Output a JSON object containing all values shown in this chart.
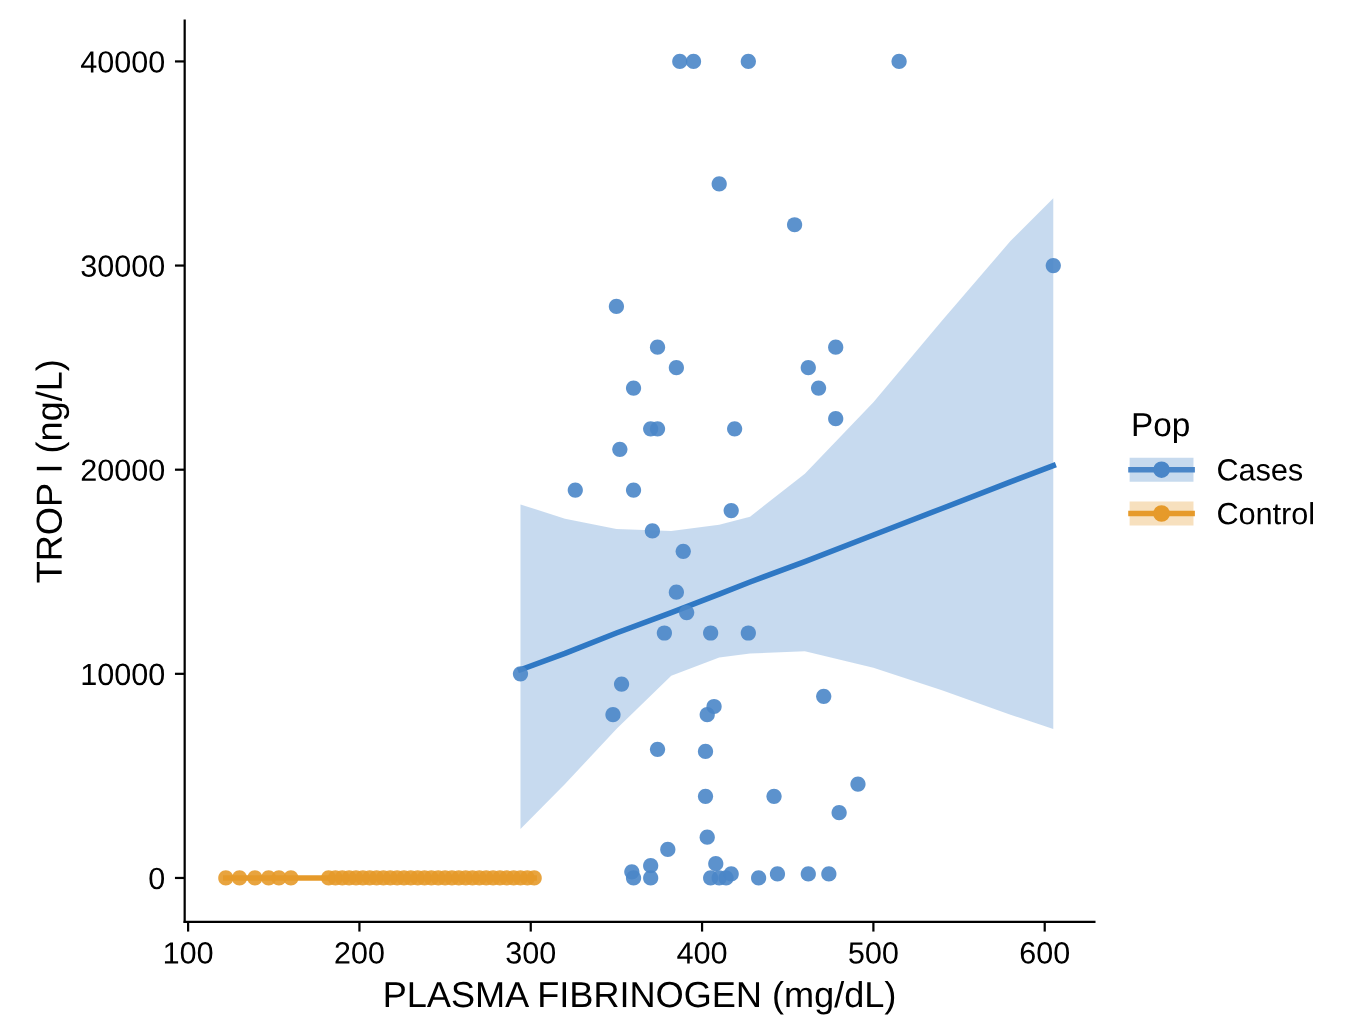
{
  "chart_data": {
    "type": "scatter",
    "xlabel": "PLASMA FIBRINOGEN (mg/dL)",
    "ylabel": "TROP I (ng/L)",
    "legend_title": "Pop",
    "legend": "right",
    "grid": false,
    "xlim": [
      98,
      629
    ],
    "ylim": [
      -2150,
      42000
    ],
    "xticks": [
      100,
      200,
      300,
      400,
      500,
      600
    ],
    "yticks": [
      0,
      10000,
      20000,
      30000,
      40000
    ],
    "series": [
      {
        "name": "Cases",
        "marker": "circle",
        "color": "#4a86c8",
        "x": [
          387,
          395,
          427,
          515,
          410,
          454,
          605,
          350,
          374,
          478,
          385,
          462,
          360,
          468,
          370,
          374,
          419,
          478,
          352,
          326,
          360,
          417,
          371,
          389,
          385,
          391,
          378,
          405,
          427,
          294,
          353,
          348,
          403,
          407,
          471,
          374,
          402,
          402,
          442,
          491,
          480,
          380,
          403,
          408,
          359,
          360,
          370,
          370,
          405,
          410,
          414,
          417,
          433,
          444,
          462,
          474
        ],
        "values": [
          40000,
          40000,
          40000,
          40000,
          34000,
          32000,
          30000,
          28000,
          26000,
          26000,
          25000,
          25000,
          24000,
          24000,
          22000,
          22000,
          22000,
          22500,
          21000,
          19000,
          19000,
          18000,
          17000,
          16000,
          14000,
          13000,
          12000,
          12000,
          12000,
          10000,
          9500,
          8000,
          8000,
          8400,
          8900,
          6300,
          6200,
          4000,
          4000,
          4600,
          3200,
          1400,
          2000,
          700,
          300,
          0,
          600,
          0,
          0,
          0,
          0,
          200,
          0,
          200,
          200,
          200
        ]
      },
      {
        "type": "line",
        "marker": "none",
        "color": "#2f78c4",
        "x": [
          294,
          320,
          350,
          382,
          410,
          428,
          460,
          500,
          540,
          580,
          605
        ],
        "values": [
          10200,
          11000,
          12000,
          13000,
          13900,
          14500,
          15500,
          16800,
          18100,
          19400,
          20200
        ],
        "lower": [
          2400,
          4600,
          7300,
          9900,
          10800,
          11000,
          11100,
          10300,
          9200,
          8000,
          7300
        ],
        "upper": [
          18300,
          17600,
          17100,
          17000,
          17300,
          17700,
          19800,
          23300,
          27300,
          31200,
          33300
        ]
      },
      {
        "name": "Control",
        "marker": "circle",
        "color": "#e69a2a",
        "x": [
          122,
          130,
          139,
          147,
          153,
          160,
          182,
          186,
          190,
          194,
          198,
          202,
          206,
          210,
          214,
          218,
          222,
          226,
          230,
          234,
          238,
          242,
          246,
          250,
          254,
          258,
          262,
          266,
          270,
          274,
          278,
          282,
          286,
          290,
          294,
          298,
          302
        ],
        "values": [
          0,
          0,
          0,
          0,
          0,
          0,
          0,
          0,
          0,
          0,
          0,
          0,
          0,
          0,
          0,
          0,
          0,
          0,
          0,
          0,
          0,
          0,
          0,
          0,
          0,
          0,
          0,
          0,
          0,
          0,
          0,
          0,
          0,
          0,
          0,
          0,
          0
        ]
      },
      {
        "type": "line",
        "marker": "none",
        "color": "#e69a2a",
        "x": [
          122,
          302
        ],
        "values": [
          0,
          0
        ]
      }
    ]
  }
}
